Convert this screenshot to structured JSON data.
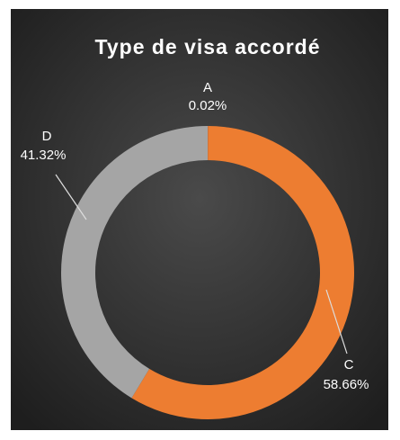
{
  "chart_data": {
    "type": "donut",
    "title": "Type de visa accordé",
    "categories": [
      "A",
      "C",
      "D"
    ],
    "values": [
      0.02,
      58.66,
      41.32
    ],
    "value_labels": [
      "0.02%",
      "58.66%",
      "41.32%"
    ],
    "colors": [
      "#4472c4",
      "#ed7d31",
      "#a5a5a5"
    ]
  }
}
